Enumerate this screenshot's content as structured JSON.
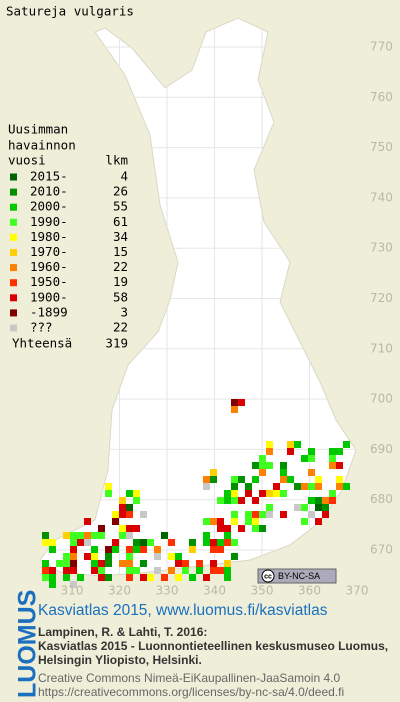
{
  "title": "Satureja vulgaris",
  "legend": {
    "heading": [
      "Uusimman",
      "havainnon",
      "vuosi"
    ],
    "count_heading": "lkm",
    "rows": [
      {
        "label": "2015-",
        "count": 4,
        "color": "#006400"
      },
      {
        "label": "2010-",
        "count": 26,
        "color": "#009000"
      },
      {
        "label": "2000-",
        "count": 55,
        "color": "#00c800"
      },
      {
        "label": "1990-",
        "count": 61,
        "color": "#40ff20"
      },
      {
        "label": "1980-",
        "count": 34,
        "color": "#ffff00"
      },
      {
        "label": "1970-",
        "count": 15,
        "color": "#ffd000"
      },
      {
        "label": "1960-",
        "count": 22,
        "color": "#ff8000"
      },
      {
        "label": "1950-",
        "count": 19,
        "color": "#ff3000"
      },
      {
        "label": "1900-",
        "count": 58,
        "color": "#d80000"
      },
      {
        "label": "-1899",
        "count": 3,
        "color": "#800000"
      },
      {
        "label": "???",
        "count": 22,
        "color": "#c8c8c8"
      }
    ],
    "total_label": "Yhteensä",
    "total": 319
  },
  "grid": {
    "north": [
      770,
      760,
      750,
      740,
      730,
      720,
      710,
      700,
      690,
      680,
      670
    ],
    "east": [
      310,
      320,
      330,
      340,
      350,
      360,
      370
    ]
  },
  "badge": {
    "cc": "cc",
    "terms": "BY-NC-SA"
  },
  "logo": "LUOMUS",
  "footer": {
    "link": "Kasviatlas 2015, www.luomus.fi/kasviatlas",
    "citation": [
      "Lampinen, R. & Lahti, T. 2016:",
      "Kasviatlas 2015 - Luonnontieteellinen keskusmuseo Luomus,",
      "Helsingin Yliopisto, Helsinki."
    ],
    "license": [
      "Creative Commons Nimeä-EiKaupallinen-JaaSamoin 4.0",
      "https://creativecommons.org/licenses/by-nc-sa/4.0/deed.fi"
    ]
  }
}
